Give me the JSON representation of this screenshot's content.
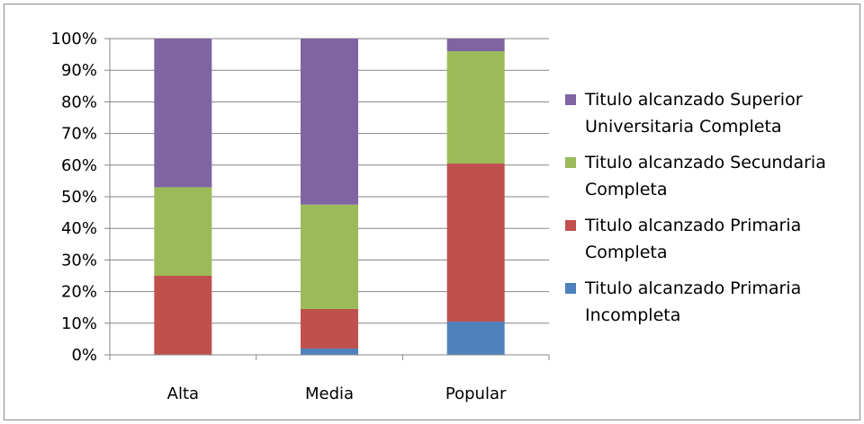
{
  "chart_data": {
    "type": "bar",
    "stacked": true,
    "categories": [
      "Alta",
      "Media",
      "Popular"
    ],
    "series": [
      {
        "name": "Titulo alcanzado Primaria Incompleta",
        "color": "#4f81bd",
        "values": [
          0,
          2,
          10.5
        ]
      },
      {
        "name": "Titulo alcanzado Primaria Completa",
        "color": "#c0504d",
        "values": [
          25,
          12.5,
          50
        ]
      },
      {
        "name": "Titulo alcanzado Secundaria Completa",
        "color": "#9bbb59",
        "values": [
          28,
          33,
          35.5
        ]
      },
      {
        "name": "Titulo alcanzado Superior Universitaria Completa",
        "color": "#8064a2",
        "values": [
          47,
          52.5,
          4
        ]
      }
    ],
    "ylim": [
      0,
      100
    ],
    "yticks": [
      "0%",
      "10%",
      "20%",
      "30%",
      "40%",
      "50%",
      "60%",
      "70%",
      "80%",
      "90%",
      "100%"
    ],
    "grid": true,
    "legend": "right",
    "title": "",
    "xlabel": "",
    "ylabel": ""
  }
}
